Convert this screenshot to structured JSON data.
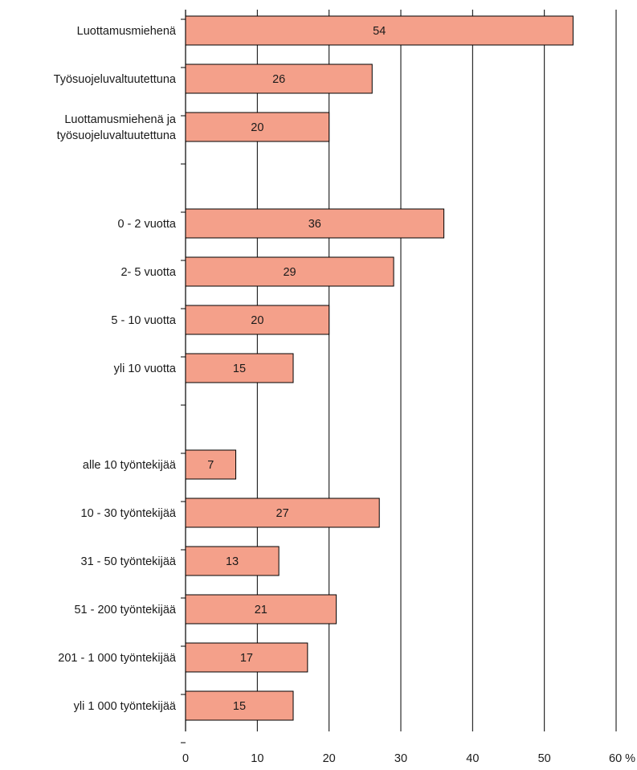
{
  "chart_data": {
    "type": "bar",
    "orientation": "horizontal",
    "title": "",
    "xlabel": "",
    "ylabel": "",
    "x_unit": "%",
    "xlim": [
      0,
      60
    ],
    "xticks": [
      0,
      10,
      20,
      30,
      40,
      50,
      60
    ],
    "xtick_labels": [
      "0",
      "10",
      "20",
      "30",
      "40",
      "50",
      "60 %"
    ],
    "grid": "vertical",
    "bar_color": "#f4a08a",
    "bar_edge_color": "#000000",
    "groups": [
      {
        "rows": [
          {
            "label": [
              "Luottamusmiehenä"
            ],
            "value": 54
          },
          {
            "label": [
              "Työsuojeluvaltuutettuna"
            ],
            "value": 26
          },
          {
            "label": [
              "Luottamusmiehenä ja",
              "työsuojeluvaltuutettuna"
            ],
            "value": 20
          }
        ]
      },
      {
        "rows": [
          {
            "label": [
              "0 - 2  vuotta"
            ],
            "value": 36
          },
          {
            "label": [
              "2-  5 vuotta"
            ],
            "value": 29
          },
          {
            "label": [
              "5 - 10 vuotta"
            ],
            "value": 20
          },
          {
            "label": [
              "yli 10 vuotta"
            ],
            "value": 15
          }
        ]
      },
      {
        "rows": [
          {
            "label": [
              "alle 10 työntekijää"
            ],
            "value": 7
          },
          {
            "label": [
              "10 - 30 työntekijää"
            ],
            "value": 27
          },
          {
            "label": [
              "31 - 50 työntekijää"
            ],
            "value": 13
          },
          {
            "label": [
              "51 - 200 työntekijää"
            ],
            "value": 21
          },
          {
            "label": [
              "201 - 1 000 työntekijää"
            ],
            "value": 17
          },
          {
            "label": [
              "yli 1 000 työntekijää"
            ],
            "value": 15
          }
        ]
      }
    ]
  }
}
